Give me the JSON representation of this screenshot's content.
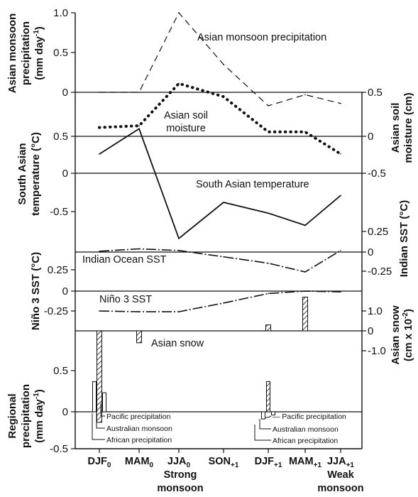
{
  "chart_data": {
    "type": "line",
    "x_categories": [
      "DJF0",
      "MAM0",
      "JJA0",
      "SON+1",
      "DJF+1",
      "MAM+1",
      "JJA+1"
    ],
    "x_tick_labels": [
      {
        "base": "DJF",
        "sub": "0"
      },
      {
        "base": "MAM",
        "sub": "0"
      },
      {
        "base": "JJA",
        "sub": "0"
      },
      {
        "base": "SON",
        "sub": "+1"
      },
      {
        "base": "DJF",
        "sub": "+1"
      },
      {
        "base": "MAM",
        "sub": "+1"
      },
      {
        "base": "JJA",
        "sub": "+1"
      }
    ],
    "x_annotations": [
      {
        "text_lines": [
          "Strong",
          "monsoon"
        ],
        "at": "JJA0"
      },
      {
        "text_lines": [
          "Weak",
          "monsoon"
        ],
        "at": "JJA+1"
      }
    ],
    "panels": [
      {
        "id": "asian-monsoon-precipitation",
        "axis_side": "left",
        "ylabel_lines": [
          "Asian monsoon",
          "precipitation",
          "(mm day-1)"
        ],
        "yticks": [
          "1.0",
          "0.5",
          "0"
        ],
        "series": [
          {
            "name": "Asian monsoon precipitation",
            "style": "dashed",
            "values": [
              0.0,
              0.0,
              1.0,
              0.35,
              -0.17,
              -0.03,
              -0.14
            ]
          }
        ]
      },
      {
        "id": "asian-soil-moisture",
        "axis_side": "right",
        "ylabel_lines": [
          "Asian soil",
          "moisture (cm)"
        ],
        "yticks": [
          "0.5",
          "0",
          "-0.5"
        ],
        "series": [
          {
            "name": "Asian soil moisture",
            "style": "dotted",
            "values": [
              0.1,
              0.12,
              0.6,
              0.45,
              0.05,
              0.05,
              -0.2
            ]
          }
        ]
      },
      {
        "id": "south-asian-temperature",
        "axis_side": "left",
        "ylabel_lines": [
          "South Asian",
          "temperature (°C)"
        ],
        "yticks": [
          "0.5",
          "0",
          "-0.5"
        ],
        "series": [
          {
            "name": "South Asian temperature",
            "style": "solid",
            "values": [
              0.25,
              0.58,
              -0.85,
              -0.38,
              -0.52,
              -0.68,
              -0.29
            ]
          }
        ]
      },
      {
        "id": "indian-ocean-sst",
        "axis_side": "right",
        "ylabel_lines": [
          "Indian SST (°C)"
        ],
        "yticks": [
          "0.25",
          "0",
          "-0.25"
        ],
        "series": [
          {
            "name": "Indian Ocean SST",
            "style": "dash-dot",
            "values": [
              0.01,
              0.04,
              0.02,
              -0.06,
              -0.14,
              -0.25,
              0.02
            ]
          }
        ]
      },
      {
        "id": "nino3-sst",
        "axis_side": "left",
        "ylabel_lines": [
          "Niño 3 SST (°C)"
        ],
        "yticks": [
          "0.25",
          "0",
          "-0.25"
        ],
        "series": [
          {
            "name": "Niño 3 SST",
            "style": "dash-dot",
            "values": [
              -0.25,
              -0.26,
              -0.26,
              -0.15,
              -0.03,
              0.0,
              -0.01
            ]
          }
        ]
      },
      {
        "id": "asian-snow",
        "axis_side": "right",
        "ylabel_lines": [
          "Asian snow",
          "(cm x 10-2)"
        ],
        "yticks": [
          "1.0",
          "0",
          "-1.0"
        ],
        "bars": [
          {
            "name": "Asian snow",
            "pattern": "hatched",
            "values": [
              -4.6,
              -0.6,
              null,
              null,
              0.3,
              1.7,
              null
            ]
          }
        ]
      },
      {
        "id": "regional-precipitation",
        "axis_side": "left",
        "ylabel_lines": [
          "Regional",
          "precipitation",
          "(mm day-1)"
        ],
        "yticks": [
          "0.5",
          "0",
          "-0.5"
        ],
        "bars": [
          {
            "name": "Pacific precipitation",
            "pattern": "plain",
            "values": [
              0.24,
              null,
              null,
              null,
              -0.04,
              null,
              null
            ]
          },
          {
            "name": "Australian monsoon",
            "pattern": "hatched",
            "values": [
              null,
              null,
              null,
              null,
              0.38,
              null,
              null
            ]
          },
          {
            "name": "African precipitation",
            "pattern": "plain",
            "values": [
              0.38,
              null,
              null,
              null,
              -0.09,
              null,
              null
            ]
          }
        ]
      }
    ],
    "annotations": [
      {
        "text": "Asian monsoon precipitation"
      },
      {
        "text_lines": [
          "Asian soil",
          "moisture"
        ]
      },
      {
        "text": "South Asian temperature"
      },
      {
        "text": "Indian Ocean SST"
      },
      {
        "text": "Niño 3 SST"
      },
      {
        "text": "Asian snow"
      },
      {
        "text": "Pacific precipitation"
      },
      {
        "text": "Australian monsoon"
      },
      {
        "text": "African precipitation"
      }
    ]
  }
}
